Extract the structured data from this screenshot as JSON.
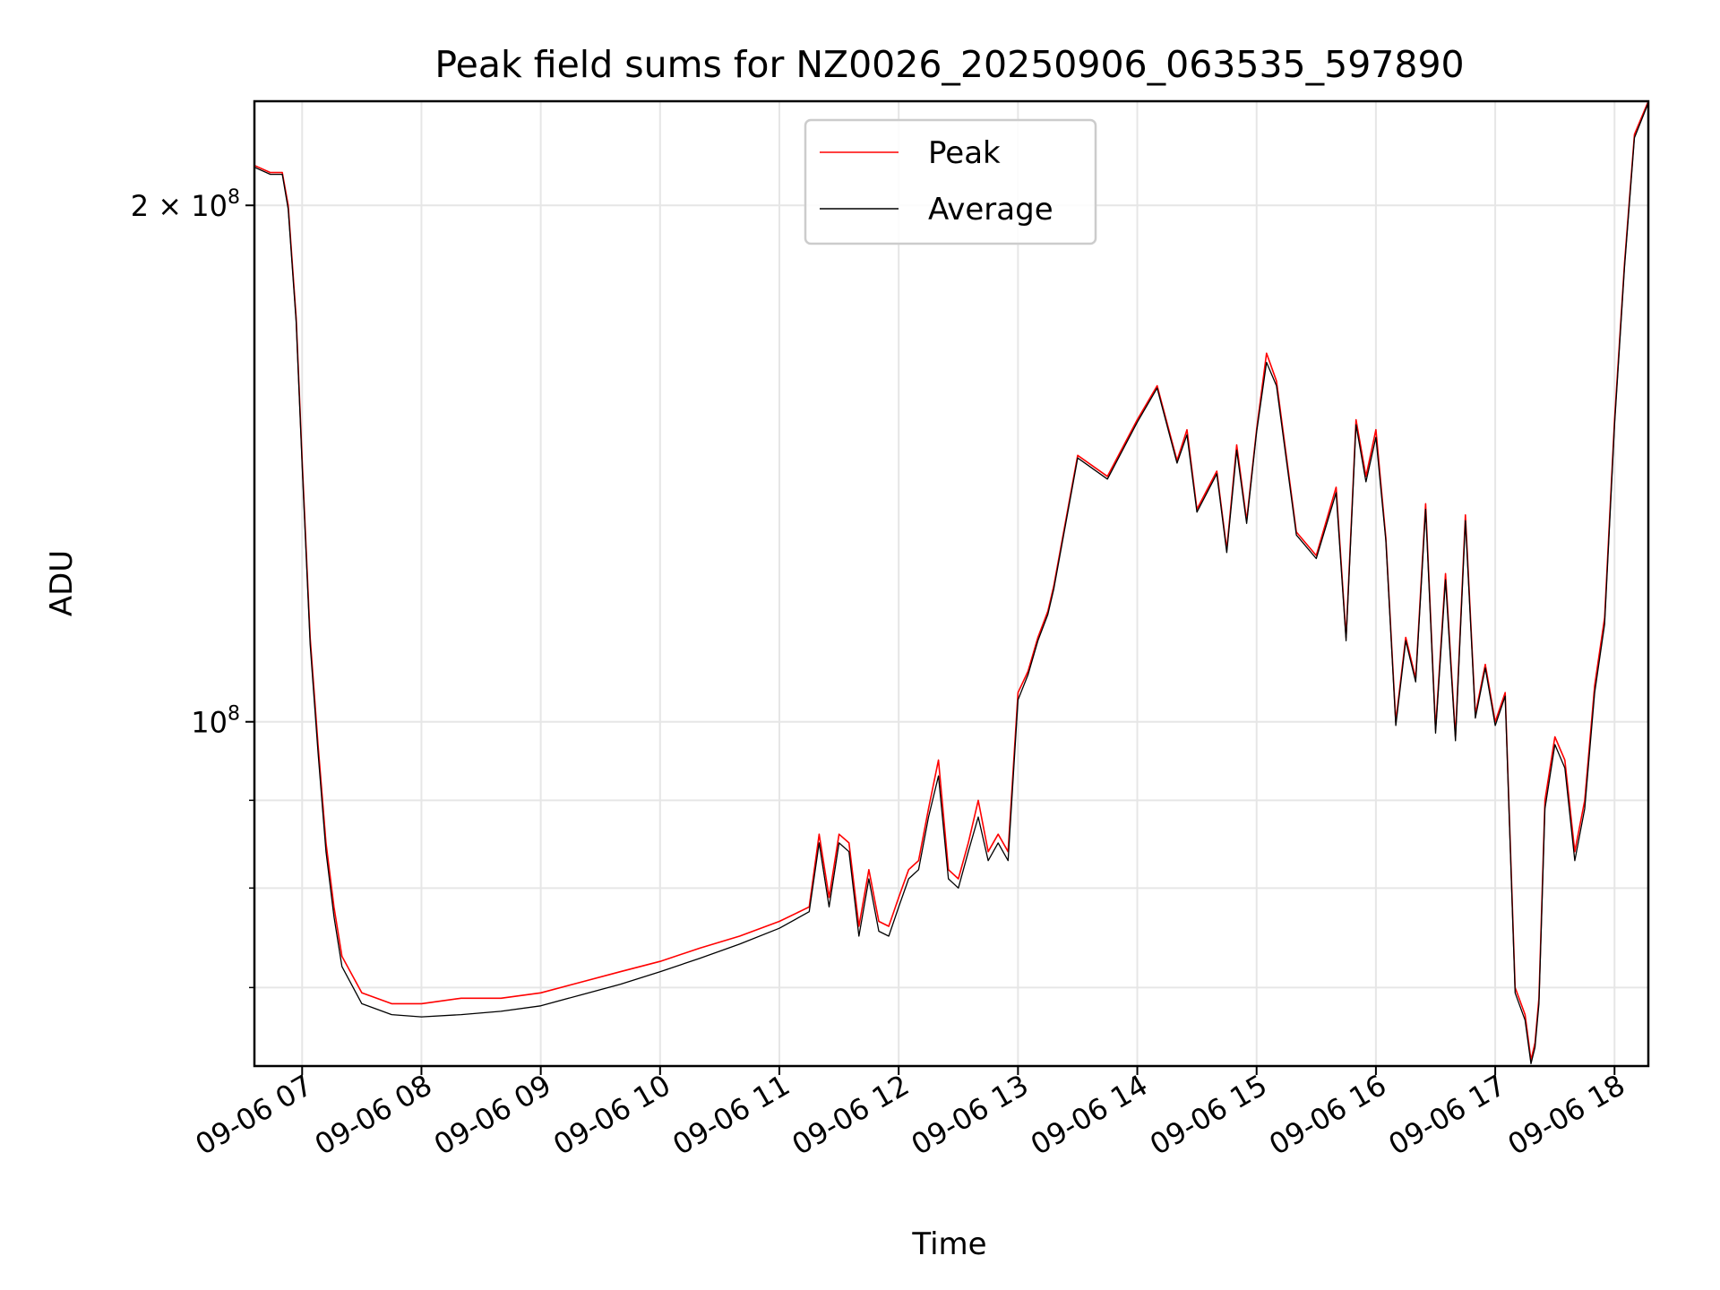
{
  "chart_data": {
    "type": "line",
    "title": "Peak field sums for NZ0026_20250906_063535_597890",
    "xlabel": "Time",
    "ylabel": "ADU",
    "y_scale": "log",
    "ylim": [
      63000000,
      230000000
    ],
    "xlim": [
      "09-06 06:36",
      "09-06 18:17"
    ],
    "grid": true,
    "legend_position": "top-center",
    "x_ticks": [
      "09-06 07",
      "09-06 08",
      "09-06 09",
      "09-06 10",
      "09-06 11",
      "09-06 12",
      "09-06 13",
      "09-06 14",
      "09-06 15",
      "09-06 16",
      "09-06 17",
      "09-06 18"
    ],
    "y_ticks": [
      {
        "value": 200000000,
        "label": "2 × 10",
        "exp": "8"
      },
      {
        "value": 100000000,
        "label": "10",
        "exp": "8"
      }
    ],
    "series": [
      {
        "name": "Peak",
        "color": "#ff0000",
        "x": [
          "09-06 06:36",
          "09-06 06:44",
          "09-06 06:50",
          "09-06 06:53",
          "09-06 06:57",
          "09-06 07:00",
          "09-06 07:04",
          "09-06 07:08",
          "09-06 07:12",
          "09-06 07:16",
          "09-06 07:20",
          "09-06 07:30",
          "09-06 07:45",
          "09-06 08:00",
          "09-06 08:20",
          "09-06 08:40",
          "09-06 09:00",
          "09-06 09:20",
          "09-06 09:40",
          "09-06 10:00",
          "09-06 10:20",
          "09-06 10:40",
          "09-06 11:00",
          "09-06 11:15",
          "09-06 11:20",
          "09-06 11:25",
          "09-06 11:30",
          "09-06 11:35",
          "09-06 11:40",
          "09-06 11:45",
          "09-06 11:50",
          "09-06 11:55",
          "09-06 12:00",
          "09-06 12:05",
          "09-06 12:10",
          "09-06 12:15",
          "09-06 12:20",
          "09-06 12:25",
          "09-06 12:30",
          "09-06 12:35",
          "09-06 12:40",
          "09-06 12:45",
          "09-06 12:50",
          "09-06 12:55",
          "09-06 13:00",
          "09-06 13:05",
          "09-06 13:10",
          "09-06 13:15",
          "09-06 13:18",
          "09-06 13:30",
          "09-06 13:45",
          "09-06 14:00",
          "09-06 14:10",
          "09-06 14:20",
          "09-06 14:25",
          "09-06 14:30",
          "09-06 14:40",
          "09-06 14:45",
          "09-06 14:50",
          "09-06 14:55",
          "09-06 15:00",
          "09-06 15:05",
          "09-06 15:10",
          "09-06 15:20",
          "09-06 15:30",
          "09-06 15:40",
          "09-06 15:45",
          "09-06 15:50",
          "09-06 15:55",
          "09-06 16:00",
          "09-06 16:05",
          "09-06 16:10",
          "09-06 16:15",
          "09-06 16:20",
          "09-06 16:25",
          "09-06 16:30",
          "09-06 16:35",
          "09-06 16:40",
          "09-06 16:45",
          "09-06 16:50",
          "09-06 16:55",
          "09-06 17:00",
          "09-06 17:05",
          "09-06 17:10",
          "09-06 17:15",
          "09-06 17:18",
          "09-06 17:20",
          "09-06 17:22",
          "09-06 17:25",
          "09-06 17:30",
          "09-06 17:35",
          "09-06 17:40",
          "09-06 17:45",
          "09-06 17:50",
          "09-06 17:55",
          "09-06 18:00",
          "09-06 18:05",
          "09-06 18:10",
          "09-06 18:17"
        ],
        "values": [
          211000000,
          209000000,
          209000000,
          200000000,
          172000000,
          142000000,
          112000000,
          97000000,
          85000000,
          78000000,
          73000000,
          69500000,
          68500000,
          68500000,
          69000000,
          69000000,
          69500000,
          70500000,
          71500000,
          72500000,
          73800000,
          75000000,
          76500000,
          78000000,
          86000000,
          79000000,
          86000000,
          85000000,
          76000000,
          82000000,
          76500000,
          76000000,
          79000000,
          82000000,
          83000000,
          89000000,
          95000000,
          82000000,
          81000000,
          85000000,
          90000000,
          84000000,
          86000000,
          84000000,
          104000000,
          107000000,
          112000000,
          116000000,
          120000000,
          143000000,
          139000000,
          150000000,
          157000000,
          142000000,
          148000000,
          133000000,
          140000000,
          126000000,
          145000000,
          131000000,
          148000000,
          164000000,
          158000000,
          129000000,
          125000000,
          137000000,
          112000000,
          150000000,
          139000000,
          148000000,
          128000000,
          100000000,
          112000000,
          106000000,
          134000000,
          99000000,
          122000000,
          98000000,
          132000000,
          101000000,
          108000000,
          100000000,
          104000000,
          70000000,
          67500000,
          63500000,
          65000000,
          69000000,
          90000000,
          98000000,
          95000000,
          84000000,
          90000000,
          105000000,
          115000000,
          150000000,
          185000000,
          220000000,
          230000000
        ]
      },
      {
        "name": "Average",
        "color": "#000000",
        "x": [
          "09-06 06:36",
          "09-06 06:44",
          "09-06 06:50",
          "09-06 06:53",
          "09-06 06:57",
          "09-06 07:00",
          "09-06 07:04",
          "09-06 07:08",
          "09-06 07:12",
          "09-06 07:16",
          "09-06 07:20",
          "09-06 07:30",
          "09-06 07:45",
          "09-06 08:00",
          "09-06 08:20",
          "09-06 08:40",
          "09-06 09:00",
          "09-06 09:20",
          "09-06 09:40",
          "09-06 10:00",
          "09-06 10:20",
          "09-06 10:40",
          "09-06 11:00",
          "09-06 11:15",
          "09-06 11:20",
          "09-06 11:25",
          "09-06 11:30",
          "09-06 11:35",
          "09-06 11:40",
          "09-06 11:45",
          "09-06 11:50",
          "09-06 11:55",
          "09-06 12:00",
          "09-06 12:05",
          "09-06 12:10",
          "09-06 12:15",
          "09-06 12:20",
          "09-06 12:25",
          "09-06 12:30",
          "09-06 12:35",
          "09-06 12:40",
          "09-06 12:45",
          "09-06 12:50",
          "09-06 12:55",
          "09-06 13:00",
          "09-06 13:05",
          "09-06 13:10",
          "09-06 13:15",
          "09-06 13:18",
          "09-06 13:30",
          "09-06 13:45",
          "09-06 14:00",
          "09-06 14:10",
          "09-06 14:20",
          "09-06 14:25",
          "09-06 14:30",
          "09-06 14:40",
          "09-06 14:45",
          "09-06 14:50",
          "09-06 14:55",
          "09-06 15:00",
          "09-06 15:05",
          "09-06 15:10",
          "09-06 15:20",
          "09-06 15:30",
          "09-06 15:40",
          "09-06 15:45",
          "09-06 15:50",
          "09-06 15:55",
          "09-06 16:00",
          "09-06 16:05",
          "09-06 16:10",
          "09-06 16:15",
          "09-06 16:20",
          "09-06 16:25",
          "09-06 16:30",
          "09-06 16:35",
          "09-06 16:40",
          "09-06 16:45",
          "09-06 16:50",
          "09-06 16:55",
          "09-06 17:00",
          "09-06 17:05",
          "09-06 17:10",
          "09-06 17:15",
          "09-06 17:18",
          "09-06 17:20",
          "09-06 17:22",
          "09-06 17:25",
          "09-06 17:30",
          "09-06 17:35",
          "09-06 17:40",
          "09-06 17:45",
          "09-06 17:50",
          "09-06 17:55",
          "09-06 18:00",
          "09-06 18:05",
          "09-06 18:10",
          "09-06 18:17"
        ],
        "values": [
          210500000,
          208500000,
          208500000,
          199000000,
          171000000,
          141000000,
          111000000,
          96000000,
          84000000,
          77000000,
          72000000,
          68500000,
          67500000,
          67300000,
          67500000,
          67800000,
          68300000,
          69300000,
          70300000,
          71500000,
          72800000,
          74200000,
          75800000,
          77500000,
          85000000,
          78000000,
          85000000,
          84000000,
          75000000,
          81000000,
          75500000,
          75000000,
          78000000,
          81000000,
          82000000,
          88000000,
          93000000,
          81000000,
          80000000,
          84000000,
          88000000,
          83000000,
          85000000,
          83000000,
          103000000,
          106500000,
          111500000,
          115500000,
          119500000,
          142500000,
          138500000,
          149500000,
          156500000,
          141500000,
          147000000,
          132500000,
          139500000,
          125500000,
          144000000,
          130500000,
          147500000,
          162000000,
          157000000,
          128500000,
          124500000,
          136000000,
          111500000,
          149000000,
          138000000,
          146500000,
          127500000,
          99500000,
          111500000,
          105500000,
          133000000,
          98500000,
          121000000,
          97500000,
          131000000,
          100500000,
          107500000,
          99500000,
          103500000,
          69500000,
          67000000,
          63200000,
          64600000,
          68500000,
          89000000,
          97000000,
          94000000,
          83000000,
          89000000,
          104000000,
          114000000,
          149000000,
          184000000,
          219000000,
          229500000
        ]
      }
    ]
  }
}
